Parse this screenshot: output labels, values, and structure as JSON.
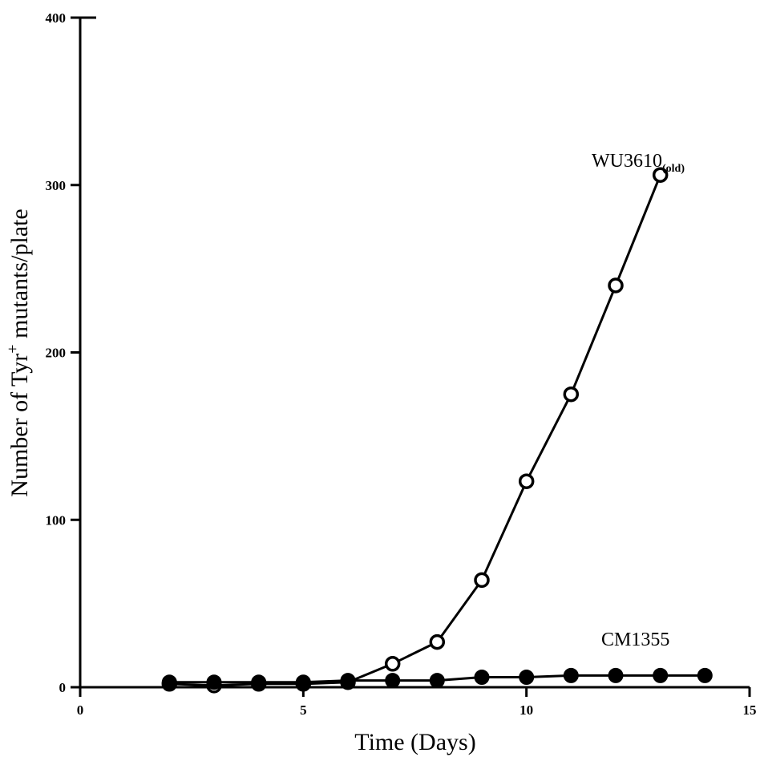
{
  "chart_data": {
    "type": "line",
    "xlabel": "Time (Days)",
    "ylabel": {
      "prefix": "Number of Tyr",
      "superscript": "+",
      "suffix": " mutants/plate"
    },
    "xlim": [
      0,
      15
    ],
    "ylim": [
      0,
      400
    ],
    "x_ticks": [
      0,
      5,
      10,
      15
    ],
    "y_ticks": [
      0,
      100,
      200,
      300,
      400
    ],
    "grid": false,
    "series": [
      {
        "name": "WU3610",
        "name_subscript": "(old)",
        "marker": "open-circle",
        "x": [
          2,
          3,
          4,
          5,
          6,
          7,
          8,
          9,
          10,
          11,
          12,
          13
        ],
        "y": [
          2,
          1,
          2,
          2,
          3,
          14,
          27,
          64,
          123,
          175,
          240,
          306
        ]
      },
      {
        "name": "CM1355",
        "marker": "filled-circle",
        "x": [
          2,
          3,
          4,
          5,
          6,
          7,
          8,
          9,
          10,
          11,
          12,
          13,
          14
        ],
        "y": [
          3,
          3,
          3,
          3,
          4,
          4,
          4,
          6,
          6,
          7,
          7,
          7,
          7
        ]
      }
    ]
  }
}
